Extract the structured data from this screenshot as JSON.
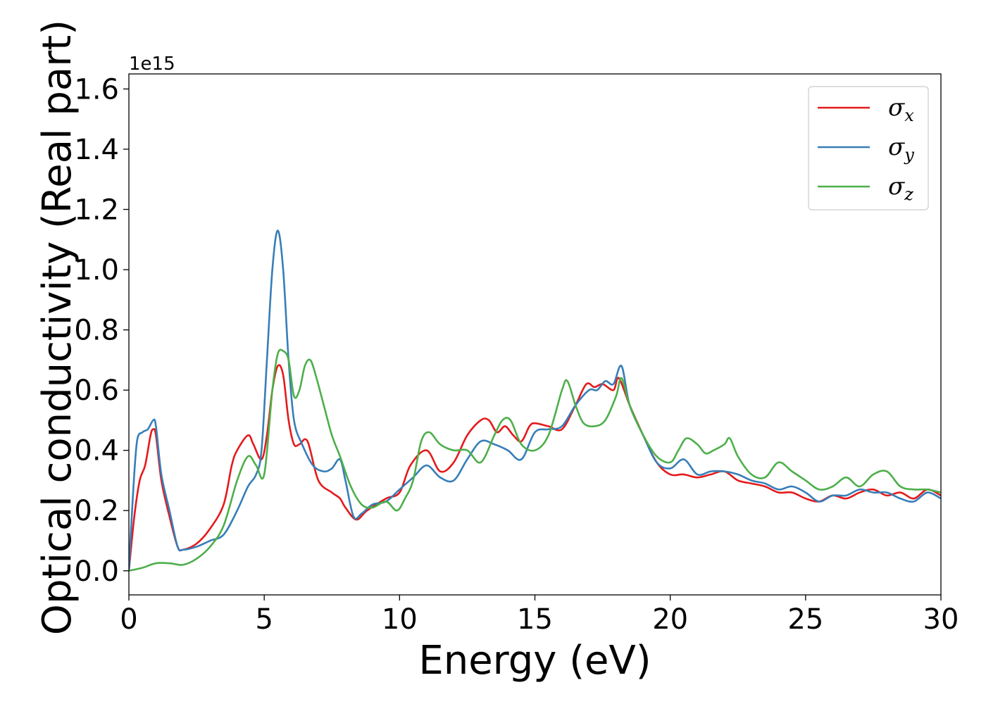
{
  "chart_data": {
    "type": "line",
    "xlabel": "Energy (eV)",
    "ylabel": "Optical conductivity (Real part)",
    "y_offset_label": "1e15",
    "xlim": [
      0,
      30
    ],
    "ylim": [
      -0.08,
      1.65
    ],
    "grid": false,
    "legend_position": "top-right",
    "x_ticks": [
      0,
      5,
      10,
      15,
      20,
      25,
      30
    ],
    "x_tick_labels": [
      "0",
      "5",
      "10",
      "15",
      "20",
      "25",
      "30"
    ],
    "y_ticks": [
      0.0,
      0.2,
      0.4,
      0.6,
      0.8,
      1.0,
      1.2,
      1.4,
      1.6
    ],
    "y_tick_labels": [
      "0.0",
      "0.2",
      "0.4",
      "0.6",
      "0.8",
      "1.0",
      "1.2",
      "1.4",
      "1.6"
    ],
    "series": [
      {
        "name": "σ",
        "subscript": "x",
        "color": "#e41a1c",
        "x": [
          0,
          0.2,
          0.4,
          0.6,
          0.8,
          0.9,
          1.0,
          1.2,
          1.5,
          1.8,
          2.0,
          2.5,
          3.0,
          3.5,
          3.8,
          4.0,
          4.4,
          4.6,
          4.9,
          5.1,
          5.3,
          5.5,
          5.7,
          5.9,
          6.1,
          6.3,
          6.6,
          7.0,
          7.5,
          7.8,
          8.0,
          8.4,
          8.8,
          9.5,
          10.0,
          10.4,
          11.0,
          11.5,
          12.0,
          12.5,
          13.0,
          13.3,
          13.6,
          13.9,
          14.2,
          14.5,
          14.8,
          15.0,
          15.5,
          16.0,
          16.5,
          16.9,
          17.2,
          17.5,
          17.9,
          18.1,
          18.5,
          19.0,
          19.5,
          20.0,
          20.5,
          21.0,
          21.5,
          22.0,
          22.5,
          23.0,
          23.5,
          24.0,
          24.5,
          25.0,
          25.5,
          26.0,
          26.5,
          27.0,
          27.5,
          28.0,
          28.5,
          29.0,
          29.5,
          30.0
        ],
        "y": [
          0.0,
          0.18,
          0.3,
          0.35,
          0.45,
          0.47,
          0.45,
          0.3,
          0.18,
          0.08,
          0.07,
          0.09,
          0.14,
          0.22,
          0.35,
          0.4,
          0.45,
          0.42,
          0.37,
          0.45,
          0.6,
          0.68,
          0.65,
          0.5,
          0.42,
          0.42,
          0.43,
          0.3,
          0.26,
          0.24,
          0.21,
          0.17,
          0.2,
          0.24,
          0.26,
          0.35,
          0.4,
          0.33,
          0.36,
          0.45,
          0.5,
          0.5,
          0.46,
          0.48,
          0.45,
          0.43,
          0.48,
          0.49,
          0.48,
          0.47,
          0.55,
          0.62,
          0.61,
          0.62,
          0.6,
          0.64,
          0.55,
          0.45,
          0.36,
          0.32,
          0.32,
          0.31,
          0.32,
          0.33,
          0.3,
          0.29,
          0.28,
          0.26,
          0.26,
          0.24,
          0.23,
          0.25,
          0.24,
          0.26,
          0.27,
          0.25,
          0.26,
          0.24,
          0.27,
          0.25
        ]
      },
      {
        "name": "σ",
        "subscript": "y",
        "color": "#377eb8",
        "x": [
          0,
          0.15,
          0.3,
          0.5,
          0.7,
          0.9,
          1.0,
          1.2,
          1.5,
          1.8,
          2.0,
          2.5,
          3.0,
          3.5,
          4.0,
          4.4,
          4.7,
          4.9,
          5.1,
          5.3,
          5.5,
          5.7,
          5.9,
          6.1,
          6.4,
          6.8,
          7.2,
          7.5,
          7.8,
          8.0,
          8.3,
          8.6,
          9.0,
          9.5,
          10.0,
          10.5,
          11.0,
          11.5,
          12.0,
          12.5,
          13.0,
          13.5,
          14.0,
          14.5,
          15.0,
          15.5,
          16.0,
          16.5,
          17.0,
          17.3,
          17.6,
          17.9,
          18.2,
          18.5,
          19.0,
          19.5,
          20.0,
          20.5,
          21.0,
          21.5,
          22.0,
          22.5,
          23.0,
          23.5,
          24.0,
          24.5,
          25.0,
          25.5,
          26.0,
          26.5,
          27.0,
          27.5,
          28.0,
          28.5,
          29.0,
          29.5,
          30.0
        ],
        "y": [
          0.0,
          0.25,
          0.43,
          0.46,
          0.47,
          0.5,
          0.48,
          0.32,
          0.2,
          0.08,
          0.07,
          0.08,
          0.1,
          0.12,
          0.2,
          0.28,
          0.32,
          0.4,
          0.7,
          1.0,
          1.13,
          1.0,
          0.7,
          0.5,
          0.42,
          0.35,
          0.33,
          0.34,
          0.37,
          0.3,
          0.18,
          0.19,
          0.22,
          0.23,
          0.27,
          0.31,
          0.35,
          0.31,
          0.3,
          0.37,
          0.43,
          0.42,
          0.4,
          0.37,
          0.46,
          0.47,
          0.48,
          0.55,
          0.6,
          0.6,
          0.63,
          0.62,
          0.68,
          0.55,
          0.45,
          0.36,
          0.34,
          0.37,
          0.32,
          0.33,
          0.33,
          0.32,
          0.3,
          0.29,
          0.27,
          0.28,
          0.26,
          0.23,
          0.25,
          0.25,
          0.27,
          0.26,
          0.26,
          0.24,
          0.23,
          0.26,
          0.24
        ]
      },
      {
        "name": "σ",
        "subscript": "z",
        "color": "#4daf4a",
        "x": [
          0,
          0.5,
          1.0,
          1.5,
          2.0,
          2.5,
          3.0,
          3.5,
          4.0,
          4.4,
          4.7,
          5.0,
          5.3,
          5.5,
          5.7,
          5.9,
          6.1,
          6.3,
          6.5,
          6.7,
          6.9,
          7.2,
          7.5,
          7.8,
          8.2,
          8.6,
          9.0,
          9.5,
          9.9,
          10.2,
          10.5,
          10.8,
          11.1,
          11.5,
          12.0,
          12.5,
          13.0,
          13.5,
          13.8,
          14.1,
          14.5,
          15.0,
          15.5,
          16.0,
          16.2,
          16.5,
          16.8,
          17.2,
          17.6,
          18.0,
          18.2,
          18.5,
          19.0,
          19.5,
          20.0,
          20.3,
          20.6,
          21.0,
          21.3,
          21.6,
          22.0,
          22.2,
          22.5,
          23.0,
          23.5,
          24.0,
          24.5,
          25.0,
          25.5,
          26.0,
          26.5,
          27.0,
          27.5,
          28.0,
          28.5,
          29.0,
          29.5,
          30.0
        ],
        "y": [
          0.0,
          0.01,
          0.025,
          0.025,
          0.02,
          0.04,
          0.08,
          0.15,
          0.3,
          0.38,
          0.35,
          0.32,
          0.6,
          0.72,
          0.73,
          0.7,
          0.58,
          0.6,
          0.68,
          0.7,
          0.65,
          0.55,
          0.45,
          0.38,
          0.28,
          0.22,
          0.21,
          0.23,
          0.2,
          0.24,
          0.3,
          0.43,
          0.46,
          0.42,
          0.4,
          0.4,
          0.36,
          0.45,
          0.5,
          0.5,
          0.42,
          0.4,
          0.45,
          0.6,
          0.63,
          0.55,
          0.49,
          0.48,
          0.5,
          0.58,
          0.64,
          0.55,
          0.45,
          0.38,
          0.36,
          0.4,
          0.44,
          0.42,
          0.39,
          0.4,
          0.42,
          0.44,
          0.38,
          0.32,
          0.31,
          0.36,
          0.33,
          0.3,
          0.27,
          0.28,
          0.31,
          0.28,
          0.32,
          0.33,
          0.28,
          0.27,
          0.27,
          0.26
        ]
      }
    ]
  }
}
